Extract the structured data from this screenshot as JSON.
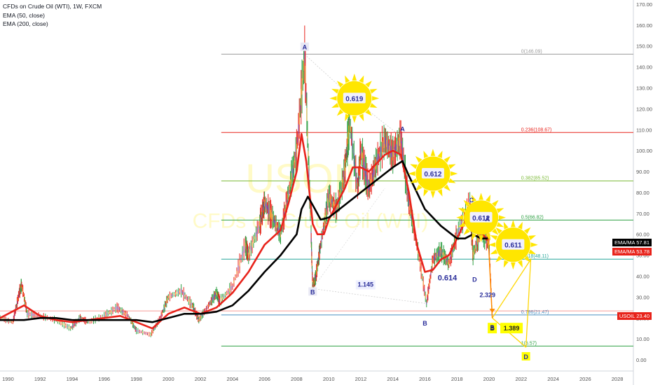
{
  "legend": {
    "title": "CFDs on Crude Oil (WTI), 1W, FXCM",
    "ema50": "EMA (50, close)",
    "ema200": "EMA (200, close)"
  },
  "watermark": {
    "symbol": "USOIL",
    "name": "CFDs on Crude Oil (WTI)"
  },
  "colors": {
    "ema50": "#e8231b",
    "ema200": "#000000",
    "price_up": "#2ea043",
    "price_down": "#e8231b",
    "wave_label": "#2a2e9a",
    "sun": "#ffe600",
    "target_box": "#ffff00",
    "tag_black": "#000000",
    "tag_red": "#e8231b",
    "usoil_tag": "#e8231b"
  },
  "price_tags": [
    {
      "label": "EMA/MA",
      "value": "57.81",
      "color": "#000000"
    },
    {
      "label": "EMA/MA",
      "value": "53.78",
      "color": "#e8231b"
    },
    {
      "label": "USOIL",
      "value": "23.40",
      "color": "#e8231b"
    }
  ],
  "chart_data": {
    "type": "line",
    "title": "CFDs on Crude Oil (WTI), 1W, FXCM",
    "xlim": [
      1989.5,
      2029
    ],
    "ylim": [
      -2,
      172
    ],
    "x_ticks": [
      "1990",
      "1992",
      "1994",
      "1996",
      "1998",
      "2000",
      "2002",
      "2004",
      "2006",
      "2008",
      "2010",
      "2012",
      "2014",
      "2016",
      "2018",
      "2020",
      "2022",
      "2024",
      "2026",
      "2028"
    ],
    "y_ticks": [
      "0.00",
      "10.00",
      "20.00",
      "30.00",
      "40.00",
      "50.00",
      "60.00",
      "70.00",
      "80.00",
      "90.00",
      "100.00",
      "110.00",
      "120.00",
      "130.00",
      "140.00",
      "150.00",
      "160.00",
      "170.00"
    ],
    "grid": false,
    "legend_position": "top-left",
    "price": {
      "x": [
        1989.5,
        1990.3,
        1990.7,
        1990.85,
        1991.2,
        1992,
        1993,
        1993.9,
        1994.5,
        1995,
        1996,
        1996.8,
        1997.5,
        1998,
        1998.9,
        1999.5,
        2000,
        2000.8,
        2001.5,
        2001.9,
        2002.5,
        2003,
        2003.2,
        2004,
        2004.8,
        2005,
        2005.7,
        2006,
        2006.5,
        2007,
        2007.5,
        2008,
        2008.5,
        2008.9,
        2009,
        2009.2,
        2009.5,
        2010,
        2010.5,
        2011,
        2011.3,
        2011.8,
        2012,
        2012.5,
        2013,
        2013.5,
        2014,
        2014.5,
        2015,
        2015.5,
        2016.1,
        2016.5,
        2017,
        2017.5,
        2018,
        2018.8,
        2019,
        2019.5,
        2020,
        2020.2
      ],
      "y": [
        20,
        18,
        32,
        36,
        22,
        21,
        19,
        15,
        20,
        18,
        21,
        25,
        21,
        14,
        12,
        20,
        30,
        33,
        26,
        19,
        26,
        32,
        28,
        35,
        55,
        50,
        65,
        75,
        68,
        60,
        80,
        100,
        146,
        60,
        34,
        40,
        55,
        78,
        72,
        90,
        114,
        82,
        100,
        82,
        95,
        105,
        98,
        106,
        75,
        55,
        27,
        48,
        52,
        46,
        60,
        75,
        50,
        62,
        55,
        20
      ],
      "name": ""
    },
    "series": [
      {
        "name": "EMA (50, close)",
        "x": [
          1989.5,
          1991,
          1992,
          1993,
          1994,
          1995,
          1996,
          1997,
          1998,
          1999,
          2000,
          2001,
          2002,
          2003,
          2004,
          2005,
          2006,
          2007,
          2007.5,
          2008,
          2008.3,
          2008.6,
          2009,
          2009.3,
          2009.7,
          2010,
          2011,
          2011.5,
          2012,
          2012.5,
          2013,
          2013.5,
          2014,
          2014.5,
          2015,
          2015.5,
          2016,
          2016.5,
          2017,
          2017.5,
          2018,
          2018.5,
          2018.9,
          2019.2,
          2019.6,
          2019.9
        ],
        "y": [
          20,
          26,
          21,
          19,
          18,
          19,
          20,
          21,
          18,
          15,
          22,
          25,
          22,
          25,
          32,
          42,
          55,
          62,
          75,
          90,
          108,
          95,
          65,
          60,
          60,
          67,
          82,
          92,
          92,
          90,
          94,
          98,
          100,
          98,
          80,
          55,
          42,
          43,
          48,
          50,
          58,
          66,
          72,
          63,
          60,
          57
        ]
      },
      {
        "name": "EMA (200, close)",
        "x": [
          1989.5,
          1991,
          1992,
          1993,
          1994,
          1995,
          1996,
          1997,
          1998,
          1999,
          2000,
          2001,
          2002,
          2003,
          2004,
          2005,
          2006,
          2007,
          2008,
          2008.3,
          2008.7,
          2009,
          2009.5,
          2010,
          2011,
          2012,
          2013,
          2014,
          2014.6,
          2015,
          2016,
          2017,
          2018,
          2018.5,
          2019,
          2019.5,
          2020
        ],
        "y": [
          19,
          19,
          20,
          20,
          19,
          19,
          19,
          19,
          19,
          18,
          20,
          22,
          22,
          23,
          26,
          33,
          42,
          50,
          60,
          72,
          78,
          74,
          67,
          68,
          74,
          80,
          86,
          92,
          95,
          88,
          72,
          64,
          58,
          58,
          60,
          58,
          58
        ]
      }
    ],
    "fibonacci": [
      {
        "ratio": "0",
        "price": 146.09,
        "label": "0(146.09)",
        "color": "#9b9b9b"
      },
      {
        "ratio": "0.236",
        "price": 108.67,
        "label": "0.236(108.67)",
        "color": "#e8231b"
      },
      {
        "ratio": "0.382",
        "price": 85.52,
        "label": "0.382(85.52)",
        "color": "#7dbb3a"
      },
      {
        "ratio": "0.5",
        "price": 66.82,
        "label": "0.5(66.82)",
        "color": "#2ea043"
      },
      {
        "ratio": "0.618",
        "price": 48.11,
        "label": "0.618(48.11)",
        "color": "#26a69a"
      },
      {
        "ratio": "0.786",
        "price": 21.47,
        "label": "0.786(21.47)",
        "color": "#4a90c2"
      },
      {
        "ratio": "1",
        "price": 6.57,
        "label": "1(6.57)",
        "color": "#2ea043"
      }
    ],
    "wave_labels": [
      {
        "text": "A",
        "x": 2008.5,
        "y": 149,
        "boxed": true
      },
      {
        "text": "B",
        "x": 2009.0,
        "y": 32,
        "boxed": true
      },
      {
        "text": "A",
        "x": 2014.6,
        "y": 110,
        "boxed": false
      },
      {
        "text": "B",
        "x": 2016.0,
        "y": 17,
        "boxed": false
      },
      {
        "text": "C",
        "x": 2018.9,
        "y": 76,
        "boxed": false
      },
      {
        "text": "D",
        "x": 2019.1,
        "y": 38,
        "boxed": false
      },
      {
        "text": "A",
        "x": 2019.9,
        "y": 67,
        "boxed": false
      },
      {
        "text": "B",
        "x": 2020.2,
        "y": 15,
        "boxed": true
      },
      {
        "text": "D",
        "x": 2022.3,
        "y": 1,
        "boxed": true
      }
    ],
    "ratio_labels": [
      {
        "text": "1.145",
        "x": 2012.3,
        "y": 35
      },
      {
        "text": "0.614",
        "x": 2017.4,
        "y": 38
      },
      {
        "text": "2.329",
        "x": 2019.9,
        "y": 30
      }
    ],
    "sun_labels": [
      {
        "text": "0.619",
        "x": 2011.6,
        "y": 125
      },
      {
        "text": "0.612",
        "x": 2016.5,
        "y": 89
      },
      {
        "text": "0.612",
        "x": 2019.5,
        "y": 68
      },
      {
        "text": "0.611",
        "x": 2021.5,
        "y": 55
      }
    ],
    "target_boxes": [
      {
        "text": "1.389",
        "x": 2021.4,
        "y": 15
      },
      {
        "text": "B",
        "x": 2020.2,
        "y": 15
      }
    ],
    "annotations": [
      {
        "type": "projection",
        "x": [
          2020.2,
          2022.6,
          2022.3
        ],
        "y": [
          20,
          48,
          6
        ]
      },
      {
        "type": "projection",
        "x": [
          2020.2,
          2022.3
        ],
        "y": [
          20,
          6
        ]
      }
    ]
  }
}
